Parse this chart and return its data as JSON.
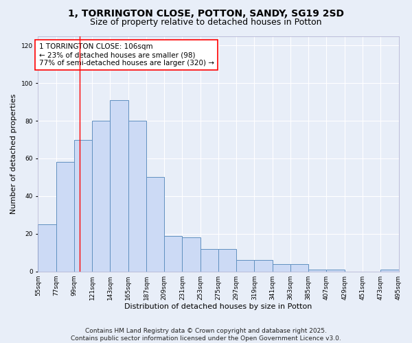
{
  "title_line1": "1, TORRINGTON CLOSE, POTTON, SANDY, SG19 2SD",
  "title_line2": "Size of property relative to detached houses in Potton",
  "xlabel": "Distribution of detached houses by size in Potton",
  "ylabel": "Number of detached properties",
  "bin_edges": [
    55,
    77,
    99,
    121,
    143,
    165,
    187,
    209,
    231,
    253,
    275,
    297,
    319,
    341,
    363,
    385,
    407,
    429,
    451,
    473,
    495
  ],
  "bar_heights": [
    25,
    58,
    70,
    80,
    91,
    80,
    50,
    19,
    18,
    12,
    12,
    6,
    6,
    4,
    4,
    1,
    1,
    0,
    0,
    1
  ],
  "bar_color": "#ccdaf5",
  "bar_edge_color": "#6090c0",
  "red_line_x": 106,
  "annotation_text": "1 TORRINGTON CLOSE: 106sqm\n← 23% of detached houses are smaller (98)\n77% of semi-detached houses are larger (320) →",
  "annotation_box_color": "white",
  "annotation_box_edge_color": "red",
  "ylim": [
    0,
    125
  ],
  "yticks": [
    0,
    20,
    40,
    60,
    80,
    100,
    120
  ],
  "tick_labels": [
    "55sqm",
    "77sqm",
    "99sqm",
    "121sqm",
    "143sqm",
    "165sqm",
    "187sqm",
    "209sqm",
    "231sqm",
    "253sqm",
    "275sqm",
    "297sqm",
    "319sqm",
    "341sqm",
    "363sqm",
    "385sqm",
    "407sqm",
    "429sqm",
    "451sqm",
    "473sqm",
    "495sqm"
  ],
  "footer_text": "Contains HM Land Registry data © Crown copyright and database right 2025.\nContains public sector information licensed under the Open Government Licence v3.0.",
  "background_color": "#e8eef8",
  "grid_color": "#ffffff",
  "title_fontsize": 10,
  "subtitle_fontsize": 9,
  "axis_label_fontsize": 8,
  "tick_fontsize": 6.5,
  "annotation_fontsize": 7.5,
  "footer_fontsize": 6.5
}
